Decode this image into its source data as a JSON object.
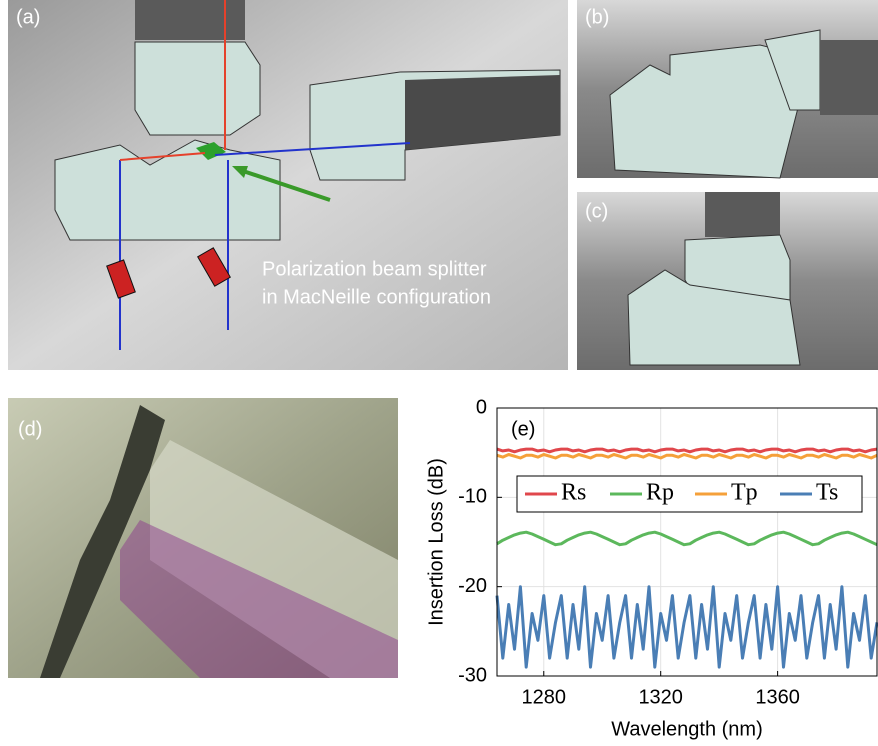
{
  "panels": {
    "a": {
      "label": "(a)",
      "annotation": [
        "Polarization beam splitter",
        "in MacNeille configuration"
      ]
    },
    "b": {
      "label": "(b)"
    },
    "c": {
      "label": "(c)"
    },
    "d": {
      "label": "(d)"
    }
  },
  "chart_data": {
    "type": "line",
    "label": "(e)",
    "x_label": "Wavelength (nm)",
    "y_label": "Insertion Loss (dB)",
    "xlim": [
      1264,
      1394
    ],
    "xticks": [
      1280,
      1320,
      1360
    ],
    "ylim": [
      -30,
      0
    ],
    "yticks": [
      0,
      -10,
      -20,
      -30
    ],
    "grid": true,
    "x": [
      1264,
      1266,
      1268,
      1270,
      1272,
      1274,
      1276,
      1278,
      1280,
      1282,
      1284,
      1286,
      1288,
      1290,
      1292,
      1294,
      1296,
      1298,
      1300,
      1302,
      1304,
      1306,
      1308,
      1310,
      1312,
      1314,
      1316,
      1318,
      1320,
      1322,
      1324,
      1326,
      1328,
      1330,
      1332,
      1334,
      1336,
      1338,
      1340,
      1342,
      1344,
      1346,
      1348,
      1350,
      1352,
      1354,
      1356,
      1358,
      1360,
      1362,
      1364,
      1366,
      1368,
      1370,
      1372,
      1374,
      1376,
      1378,
      1380,
      1382,
      1384,
      1386,
      1388,
      1390,
      1392,
      1394
    ],
    "series": [
      {
        "name": "Rs",
        "color": "#e0474c",
        "values": [
          -4.6,
          -4.8,
          -4.7,
          -4.9,
          -4.7,
          -4.6,
          -4.6,
          -4.8,
          -4.7,
          -4.9,
          -4.7,
          -4.6,
          -4.6,
          -4.8,
          -4.7,
          -4.9,
          -4.7,
          -4.6,
          -4.6,
          -4.8,
          -4.7,
          -4.9,
          -4.7,
          -4.6,
          -4.6,
          -4.8,
          -4.7,
          -4.9,
          -4.7,
          -4.6,
          -4.6,
          -4.8,
          -4.7,
          -4.9,
          -4.7,
          -4.6,
          -4.6,
          -4.8,
          -4.7,
          -4.9,
          -4.7,
          -4.6,
          -4.6,
          -4.8,
          -4.7,
          -4.9,
          -4.7,
          -4.6,
          -4.6,
          -4.8,
          -4.7,
          -4.9,
          -4.7,
          -4.6,
          -4.6,
          -4.8,
          -4.7,
          -4.9,
          -4.7,
          -4.6,
          -4.6,
          -4.8,
          -4.7,
          -4.9,
          -4.7,
          -4.6
        ]
      },
      {
        "name": "Rp",
        "color": "#5cb85c",
        "values": [
          -15.2,
          -14.8,
          -14.5,
          -14.2,
          -14.0,
          -13.9,
          -14.1,
          -14.4,
          -14.7,
          -15.0,
          -15.3,
          -15.2,
          -14.8,
          -14.5,
          -14.2,
          -14.0,
          -13.9,
          -14.1,
          -14.4,
          -14.7,
          -15.0,
          -15.3,
          -15.2,
          -14.8,
          -14.5,
          -14.2,
          -14.0,
          -13.9,
          -14.1,
          -14.4,
          -14.7,
          -15.0,
          -15.3,
          -15.2,
          -14.8,
          -14.5,
          -14.2,
          -14.0,
          -13.9,
          -14.1,
          -14.4,
          -14.7,
          -15.0,
          -15.3,
          -15.2,
          -14.8,
          -14.5,
          -14.2,
          -14.0,
          -13.9,
          -14.1,
          -14.4,
          -14.7,
          -15.0,
          -15.3,
          -15.2,
          -14.8,
          -14.5,
          -14.2,
          -14.0,
          -13.9,
          -14.1,
          -14.4,
          -14.7,
          -15.0,
          -15.3
        ]
      },
      {
        "name": "Tp",
        "color": "#f5a03a",
        "values": [
          -5.3,
          -5.5,
          -5.2,
          -5.4,
          -5.6,
          -5.3,
          -5.3,
          -5.5,
          -5.2,
          -5.4,
          -5.6,
          -5.3,
          -5.3,
          -5.5,
          -5.2,
          -5.4,
          -5.6,
          -5.3,
          -5.3,
          -5.5,
          -5.2,
          -5.4,
          -5.6,
          -5.3,
          -5.3,
          -5.5,
          -5.2,
          -5.4,
          -5.6,
          -5.3,
          -5.3,
          -5.5,
          -5.2,
          -5.4,
          -5.6,
          -5.3,
          -5.3,
          -5.5,
          -5.2,
          -5.4,
          -5.6,
          -5.3,
          -5.3,
          -5.5,
          -5.2,
          -5.4,
          -5.6,
          -5.3,
          -5.3,
          -5.5,
          -5.2,
          -5.4,
          -5.6,
          -5.3,
          -5.3,
          -5.5,
          -5.2,
          -5.4,
          -5.6,
          -5.3,
          -5.3,
          -5.5,
          -5.2,
          -5.4,
          -5.6,
          -5.3
        ]
      },
      {
        "name": "Ts",
        "color": "#4a7eb5",
        "values": [
          -21,
          -28,
          -22,
          -27,
          -20,
          -29,
          -23,
          -26,
          -21,
          -28,
          -24,
          -21,
          -28,
          -22,
          -27,
          -20,
          -29,
          -23,
          -26,
          -21,
          -28,
          -24,
          -21,
          -28,
          -22,
          -27,
          -20,
          -29,
          -23,
          -26,
          -21,
          -28,
          -24,
          -21,
          -28,
          -22,
          -27,
          -20,
          -29,
          -23,
          -26,
          -21,
          -28,
          -24,
          -21,
          -28,
          -22,
          -27,
          -20,
          -29,
          -23,
          -26,
          -21,
          -28,
          -24,
          -21,
          -28,
          -22,
          -27,
          -20,
          -29,
          -23,
          -26,
          -21,
          -28,
          -24
        ]
      }
    ]
  }
}
